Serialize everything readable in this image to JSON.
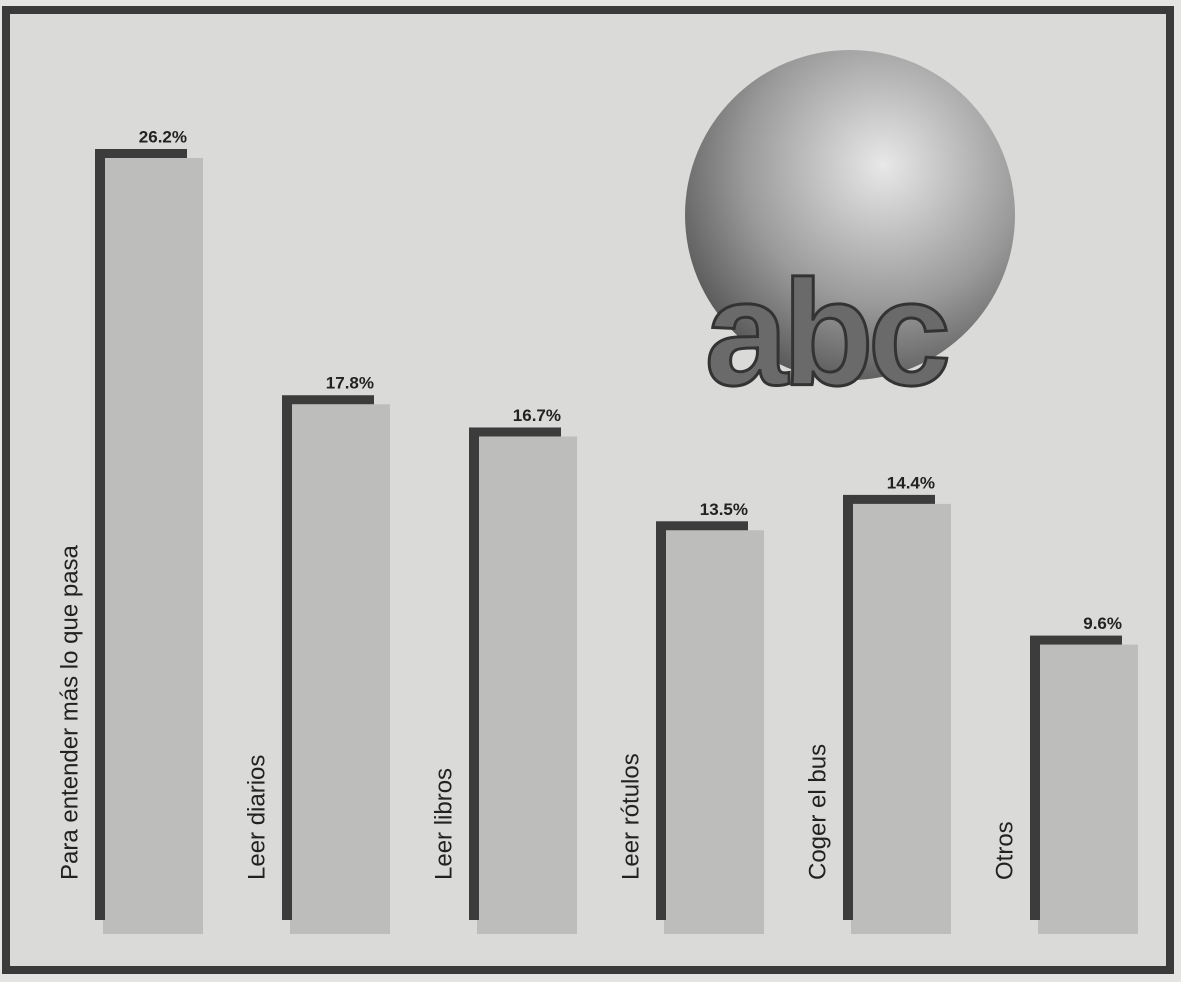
{
  "chart_data": {
    "type": "bar",
    "categories": [
      "Para entender más lo que pasa",
      "Leer diarios",
      "Leer libros",
      "Leer rótulos",
      "Coger el bus",
      "Otros"
    ],
    "values": [
      26.2,
      17.8,
      16.7,
      13.5,
      14.4,
      9.6
    ],
    "value_labels": [
      "26.2%",
      "17.8%",
      "16.7%",
      "13.5%",
      "14.4%",
      "9.6%"
    ],
    "color": "#bdbdbb",
    "annotations": [
      "abc"
    ]
  }
}
